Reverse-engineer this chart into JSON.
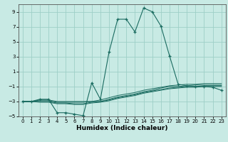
{
  "xlabel": "Humidex (Indice chaleur)",
  "xlim": [
    -0.5,
    23.5
  ],
  "ylim": [
    -5,
    10
  ],
  "yticks": [
    -5,
    -3,
    -1,
    1,
    3,
    5,
    7,
    9
  ],
  "xticks": [
    0,
    1,
    2,
    3,
    4,
    5,
    6,
    7,
    8,
    9,
    10,
    11,
    12,
    13,
    14,
    15,
    16,
    17,
    18,
    19,
    20,
    21,
    22,
    23
  ],
  "background_color": "#c8eae4",
  "grid_color": "#9ecfc7",
  "line_color": "#1a6b60",
  "series": [
    {
      "x": [
        0,
        1,
        2,
        3,
        4,
        5,
        6,
        7,
        8,
        9,
        10,
        11,
        12,
        13,
        14,
        15,
        16,
        17,
        18,
        19,
        20,
        21,
        22,
        23
      ],
      "y": [
        -3,
        -3,
        -2.7,
        -2.7,
        -4.5,
        -4.5,
        -4.7,
        -4.9,
        -0.5,
        -2.7,
        3.6,
        8.0,
        8.0,
        6.3,
        9.5,
        9.0,
        7.1,
        3.1,
        -0.7,
        -0.9,
        -1.0,
        -1.0,
        -1.1,
        -1.5
      ],
      "marker": "+"
    },
    {
      "x": [
        0,
        1,
        2,
        3,
        4,
        5,
        6,
        7,
        8,
        9,
        10,
        11,
        12,
        13,
        14,
        15,
        16,
        17,
        18,
        19,
        20,
        21,
        22,
        23
      ],
      "y": [
        -3,
        -3,
        -2.8,
        -2.8,
        -3.0,
        -3.0,
        -3.0,
        -3.0,
        -3.0,
        -2.8,
        -2.5,
        -2.2,
        -2.0,
        -1.8,
        -1.5,
        -1.3,
        -1.1,
        -0.9,
        -0.8,
        -0.7,
        -0.7,
        -0.6,
        -0.6,
        -0.6
      ],
      "marker": null
    },
    {
      "x": [
        0,
        1,
        2,
        3,
        4,
        5,
        6,
        7,
        8,
        9,
        10,
        11,
        12,
        13,
        14,
        15,
        16,
        17,
        18,
        19,
        20,
        21,
        22,
        23
      ],
      "y": [
        -3,
        -3,
        -2.9,
        -2.9,
        -3.1,
        -3.1,
        -3.1,
        -3.1,
        -3.0,
        -3.0,
        -2.7,
        -2.4,
        -2.2,
        -2.0,
        -1.7,
        -1.5,
        -1.2,
        -1.0,
        -1.0,
        -0.9,
        -0.8,
        -0.8,
        -0.8,
        -0.8
      ],
      "marker": null
    },
    {
      "x": [
        0,
        1,
        2,
        3,
        4,
        5,
        6,
        7,
        8,
        9,
        10,
        11,
        12,
        13,
        14,
        15,
        16,
        17,
        18,
        19,
        20,
        21,
        22,
        23
      ],
      "y": [
        -3,
        -3,
        -3.0,
        -3.0,
        -3.2,
        -3.2,
        -3.3,
        -3.3,
        -3.1,
        -3.0,
        -2.8,
        -2.5,
        -2.3,
        -2.1,
        -1.8,
        -1.6,
        -1.4,
        -1.2,
        -1.1,
        -1.0,
        -1.0,
        -0.9,
        -0.9,
        -0.9
      ],
      "marker": null
    },
    {
      "x": [
        0,
        1,
        2,
        3,
        4,
        5,
        6,
        7,
        8,
        9,
        10,
        11,
        12,
        13,
        14,
        15,
        16,
        17,
        18,
        19,
        20,
        21,
        22,
        23
      ],
      "y": [
        -3,
        -3,
        -3.1,
        -3.1,
        -3.3,
        -3.3,
        -3.4,
        -3.4,
        -3.2,
        -3.1,
        -2.9,
        -2.6,
        -2.4,
        -2.2,
        -1.9,
        -1.7,
        -1.5,
        -1.3,
        -1.2,
        -1.1,
        -1.1,
        -1.0,
        -1.0,
        -1.0
      ],
      "marker": null
    }
  ]
}
